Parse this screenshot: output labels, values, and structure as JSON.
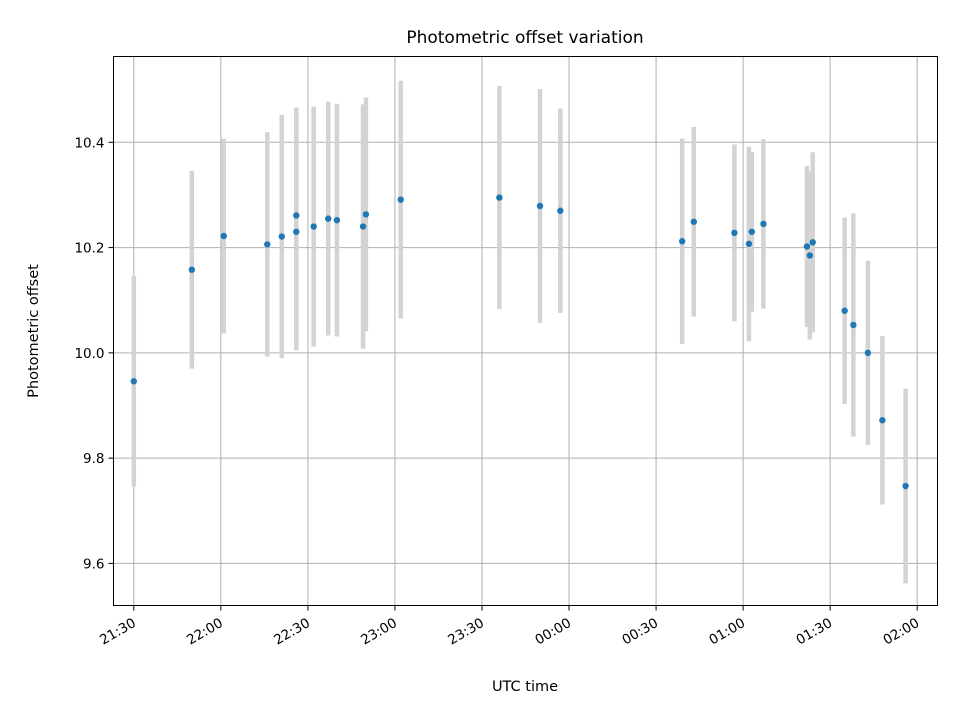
{
  "chart_data": {
    "type": "scatter",
    "title": "Photometric offset variation",
    "xlabel": "UTC time",
    "ylabel": "Photometric offset",
    "x_unit": "UTC time (HH:MM)",
    "xlim": [
      "21:23",
      "02:07"
    ],
    "ylim": [
      9.52,
      10.563
    ],
    "x_ticks": [
      "21:30",
      "22:00",
      "22:30",
      "23:00",
      "23:30",
      "00:00",
      "00:30",
      "01:00",
      "01:30",
      "02:00"
    ],
    "y_ticks": [
      9.6,
      9.8,
      10.0,
      10.2,
      10.4
    ],
    "y_tick_labels": [
      "9.6",
      "9.8",
      "10.0",
      "10.2",
      "10.4"
    ],
    "grid": true,
    "point_color": "#1f77b4",
    "errorbar_color": "#d3d3d3",
    "points": [
      {
        "x": "21:30",
        "y": 9.946,
        "yerr": 0.2
      },
      {
        "x": "21:50",
        "y": 10.158,
        "yerr": 0.188
      },
      {
        "x": "22:01",
        "y": 10.222,
        "yerr": 0.185
      },
      {
        "x": "22:16",
        "y": 10.206,
        "yerr": 0.213
      },
      {
        "x": "22:21",
        "y": 10.221,
        "yerr": 0.231
      },
      {
        "x": "22:26",
        "y": 10.261,
        "yerr": 0.205
      },
      {
        "x": "22:26",
        "y": 10.23,
        "yerr": 0.225
      },
      {
        "x": "22:32",
        "y": 10.24,
        "yerr": 0.228
      },
      {
        "x": "22:37",
        "y": 10.255,
        "yerr": 0.222
      },
      {
        "x": "22:40",
        "y": 10.252,
        "yerr": 0.221
      },
      {
        "x": "22:49",
        "y": 10.24,
        "yerr": 0.232
      },
      {
        "x": "22:50",
        "y": 10.263,
        "yerr": 0.222
      },
      {
        "x": "23:02",
        "y": 10.291,
        "yerr": 0.226
      },
      {
        "x": "23:36",
        "y": 10.295,
        "yerr": 0.212
      },
      {
        "x": "23:50",
        "y": 10.279,
        "yerr": 0.222
      },
      {
        "x": "23:57",
        "y": 10.27,
        "yerr": 0.194
      },
      {
        "x": "00:39",
        "y": 10.212,
        "yerr": 0.195
      },
      {
        "x": "00:43",
        "y": 10.249,
        "yerr": 0.18
      },
      {
        "x": "00:57",
        "y": 10.228,
        "yerr": 0.168
      },
      {
        "x": "01:02",
        "y": 10.207,
        "yerr": 0.185
      },
      {
        "x": "01:03",
        "y": 10.23,
        "yerr": 0.152
      },
      {
        "x": "01:07",
        "y": 10.245,
        "yerr": 0.161
      },
      {
        "x": "01:22",
        "y": 10.202,
        "yerr": 0.153
      },
      {
        "x": "01:23",
        "y": 10.185,
        "yerr": 0.16
      },
      {
        "x": "01:24",
        "y": 10.21,
        "yerr": 0.171
      },
      {
        "x": "01:35",
        "y": 10.08,
        "yerr": 0.177
      },
      {
        "x": "01:38",
        "y": 10.053,
        "yerr": 0.212
      },
      {
        "x": "01:43",
        "y": 10.0,
        "yerr": 0.175
      },
      {
        "x": "01:48",
        "y": 9.872,
        "yerr": 0.16
      },
      {
        "x": "01:56",
        "y": 9.747,
        "yerr": 0.185
      }
    ]
  }
}
